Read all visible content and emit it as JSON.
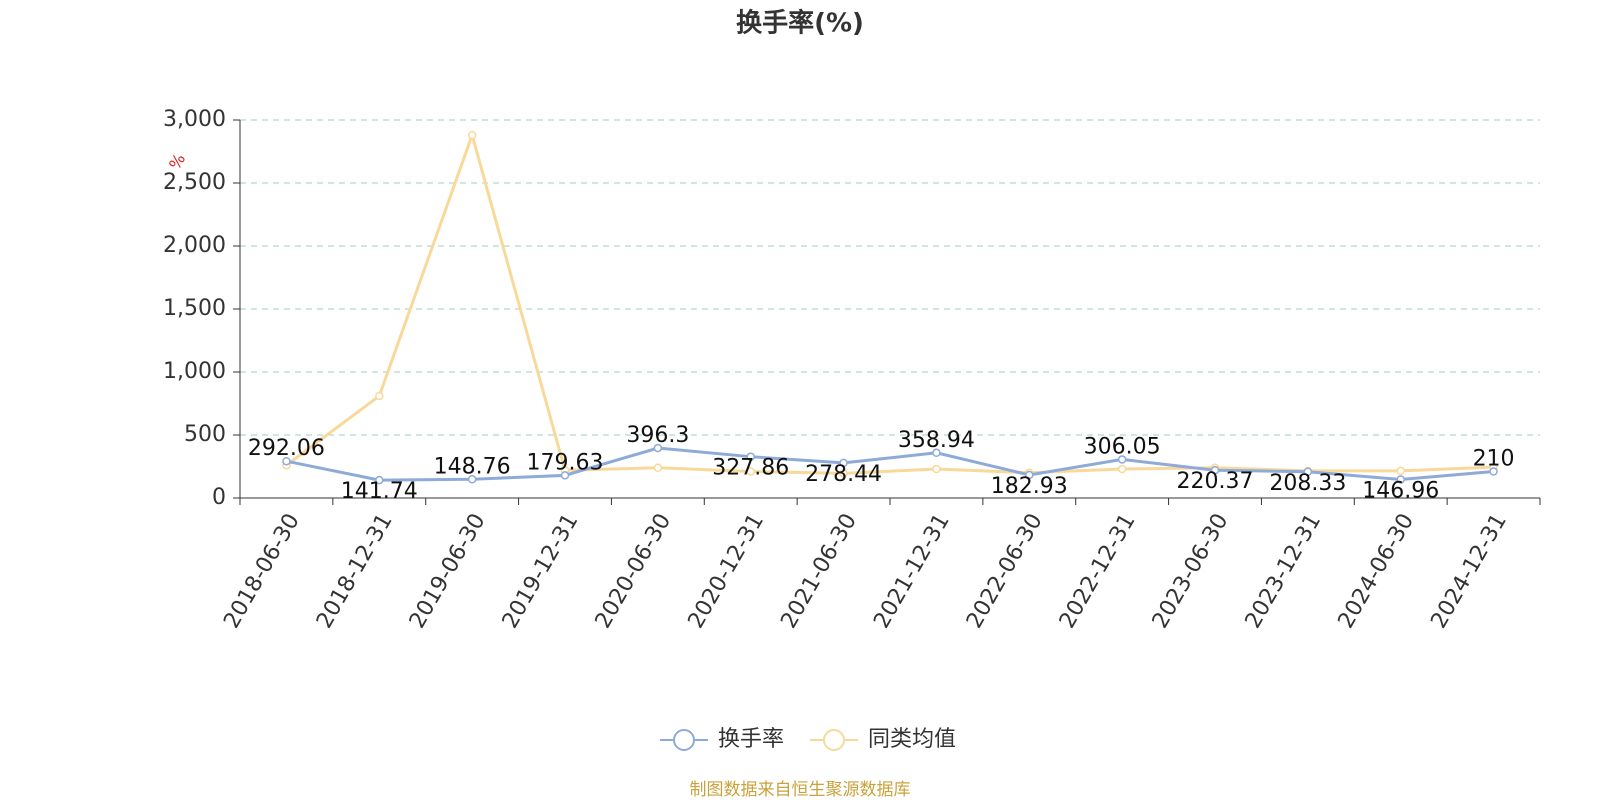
{
  "chart_data": {
    "type": "line",
    "title": "换手率(%)",
    "y_unit": "%",
    "categories": [
      "2018-06-30",
      "2018-12-31",
      "2019-06-30",
      "2019-12-31",
      "2020-06-30",
      "2020-12-31",
      "2021-06-30",
      "2021-12-31",
      "2022-06-30",
      "2022-12-31",
      "2023-06-30",
      "2023-12-31",
      "2024-06-30",
      "2024-12-31"
    ],
    "series": [
      {
        "name": "换手率",
        "color": "#8eaad8",
        "show_labels": true,
        "values": [
          292.06,
          141.74,
          148.76,
          179.63,
          396.3,
          327.86,
          278.44,
          358.94,
          182.93,
          306.05,
          220.37,
          208.33,
          146.96,
          210
        ]
      },
      {
        "name": "同类均值",
        "color": "#f8d99a",
        "show_labels": false,
        "values": [
          260,
          810,
          2880,
          220,
          240,
          210,
          195,
          230,
          200,
          230,
          240,
          215,
          215,
          245
        ]
      }
    ],
    "ylim": [
      0,
      3000
    ],
    "yticks": [
      0,
      500,
      {
        "value": 1000,
        "label": "1,000"
      },
      {
        "value": 1500,
        "label": "1,500"
      },
      {
        "value": 2000,
        "label": "2,000"
      },
      {
        "value": 2500,
        "label": "2,500"
      },
      {
        "value": 3000,
        "label": "3,000"
      }
    ],
    "grid": true,
    "footer": "制图数据来自恒生聚源数据库"
  }
}
